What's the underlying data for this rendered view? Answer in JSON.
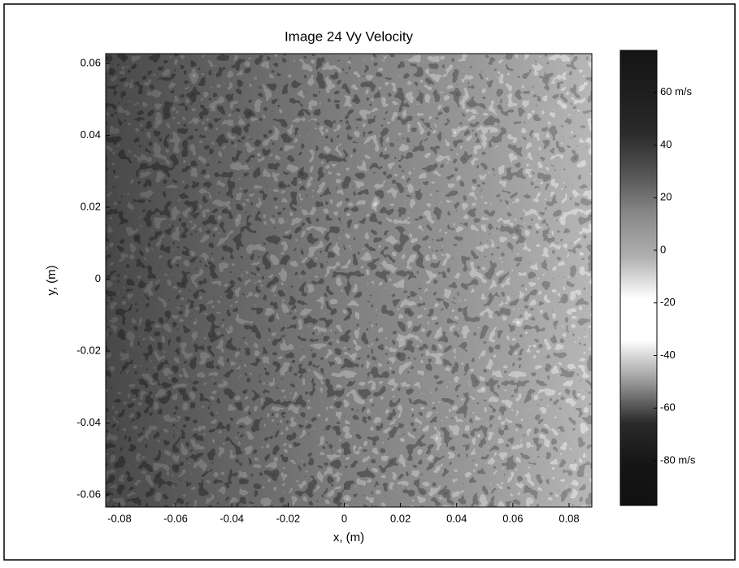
{
  "chart_data": {
    "type": "heatmap",
    "title": "Image 24 Vy Velocity",
    "xlabel": "x, (m)",
    "ylabel": "y, (m)",
    "xlim": [
      -0.0849,
      0.0881
    ],
    "xticks": [
      -0.08,
      -0.06,
      -0.04,
      -0.02,
      0,
      0.02,
      0.04,
      0.06,
      0.08
    ],
    "ylim": [
      -0.0634,
      0.0627
    ],
    "yticks": [
      -0.06,
      -0.04,
      -0.02,
      0,
      0.02,
      0.04,
      0.06
    ],
    "colorbar": {
      "clim": [
        -97,
        76
      ],
      "ticks": [
        {
          "value": -80,
          "label": "-80 m/s"
        },
        -60,
        -40,
        -20,
        0,
        20,
        40,
        {
          "value": 60,
          "label": "60 m/s"
        }
      ],
      "colors": [
        "#141414",
        "#1e1e1e",
        "#2a2a2a",
        "#555555",
        "#8a8a8a",
        "#b0b0b0",
        "#ffffff",
        "#ffffff",
        "#9a9a9a",
        "#2a2a2a",
        "#151515",
        "#111111"
      ]
    }
  }
}
